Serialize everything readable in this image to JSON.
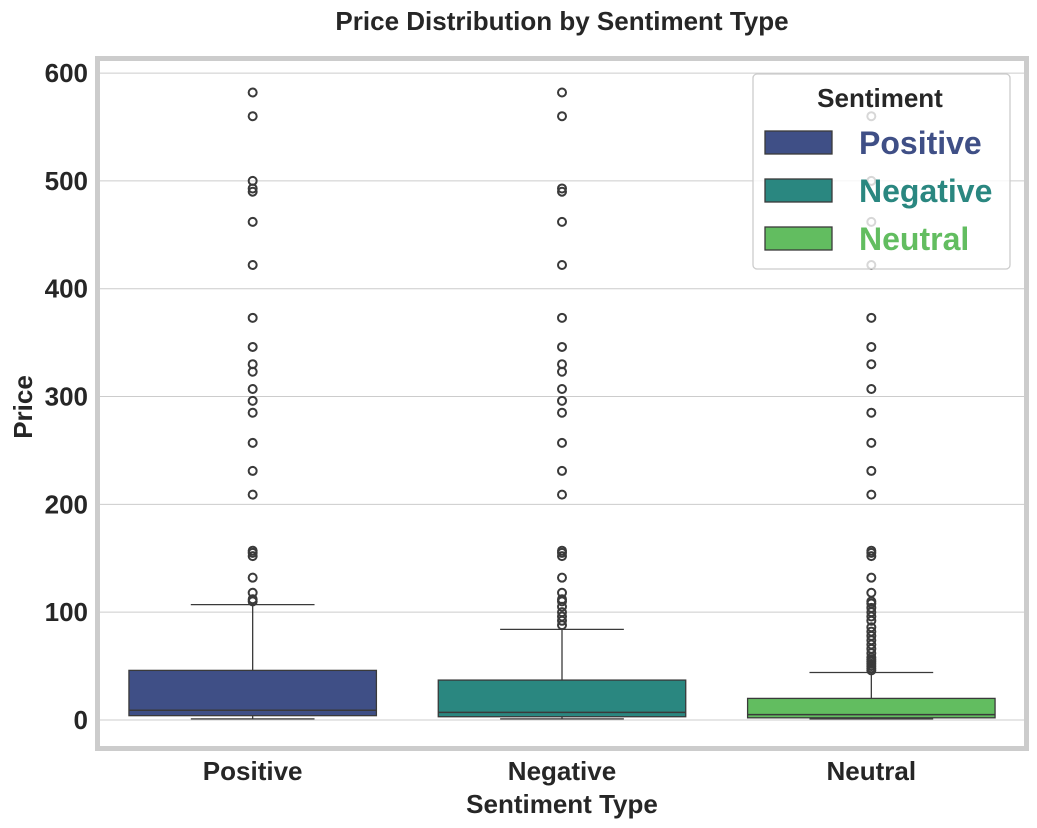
{
  "chart_data": {
    "type": "box",
    "title": "Price Distribution by Sentiment Type",
    "xlabel": "Sentiment Type",
    "ylabel": "Price",
    "ylim": [
      -26,
      614
    ],
    "yticks": [
      0,
      100,
      200,
      300,
      400,
      500,
      600
    ],
    "categories": [
      "Positive",
      "Negative",
      "Neutral"
    ],
    "grid": true,
    "legend": {
      "title": "Sentiment",
      "placement": "top-right",
      "entries": [
        {
          "label": "Positive",
          "color": "#3f4f86"
        },
        {
          "label": "Negative",
          "color": "#2a8780"
        },
        {
          "label": "Neutral",
          "color": "#62bd60"
        }
      ]
    },
    "boxes": [
      {
        "name": "Positive",
        "color": "#3f4f86",
        "whislo": 1,
        "q1": 4,
        "med": 9,
        "q3": 46,
        "whishi": 107,
        "fliers": [
          110,
          112,
          118,
          132,
          152,
          155,
          157,
          209,
          231,
          257,
          285,
          296,
          307,
          323,
          330,
          346,
          373,
          422,
          462,
          490,
          493,
          500,
          560,
          582
        ]
      },
      {
        "name": "Negative",
        "color": "#2a8780",
        "whislo": 1,
        "q1": 3,
        "med": 7,
        "q3": 37,
        "whishi": 84,
        "fliers": [
          88,
          92,
          96,
          100,
          105,
          110,
          112,
          118,
          132,
          152,
          155,
          157,
          209,
          231,
          257,
          285,
          296,
          307,
          323,
          330,
          346,
          373,
          422,
          462,
          490,
          493,
          560,
          582
        ]
      },
      {
        "name": "Neutral",
        "color": "#62bd60",
        "whislo": 1,
        "q1": 2,
        "med": 5,
        "q3": 20,
        "whishi": 44,
        "fliers": [
          46,
          48,
          50,
          52,
          54,
          56,
          58,
          62,
          66,
          70,
          74,
          78,
          82,
          86,
          92,
          96,
          100,
          104,
          108,
          110,
          118,
          132,
          152,
          155,
          157,
          209,
          231,
          257,
          285,
          307,
          330,
          346,
          373,
          422,
          462,
          500,
          560
        ]
      }
    ]
  }
}
